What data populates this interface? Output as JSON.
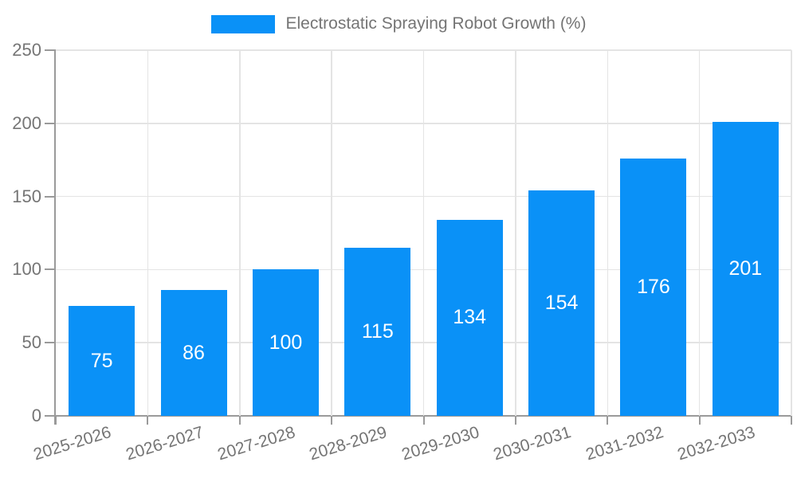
{
  "chart_data": {
    "type": "bar",
    "title": "Electrostatic Spraying Robot Growth (%)",
    "categories": [
      "2025-2026",
      "2026-2027",
      "2027-2028",
      "2028-2029",
      "2029-2030",
      "2030-2031",
      "2031-2032",
      "2032-2033"
    ],
    "values": [
      75,
      86,
      100,
      115,
      134,
      154,
      176,
      201
    ],
    "xlabel": "",
    "ylabel": "",
    "ylim": [
      0,
      250
    ],
    "yticks": [
      0,
      50,
      100,
      150,
      200,
      250
    ],
    "grid": true,
    "legend_position": "top",
    "x_label_rotation_deg": -17,
    "colors": {
      "bar": "#0a91f7",
      "value_label": "#ffffff",
      "axis_text": "#757575",
      "gridline": "#e4e4e4",
      "axis_line": "#9a9a9a",
      "background": "#ffffff"
    }
  }
}
